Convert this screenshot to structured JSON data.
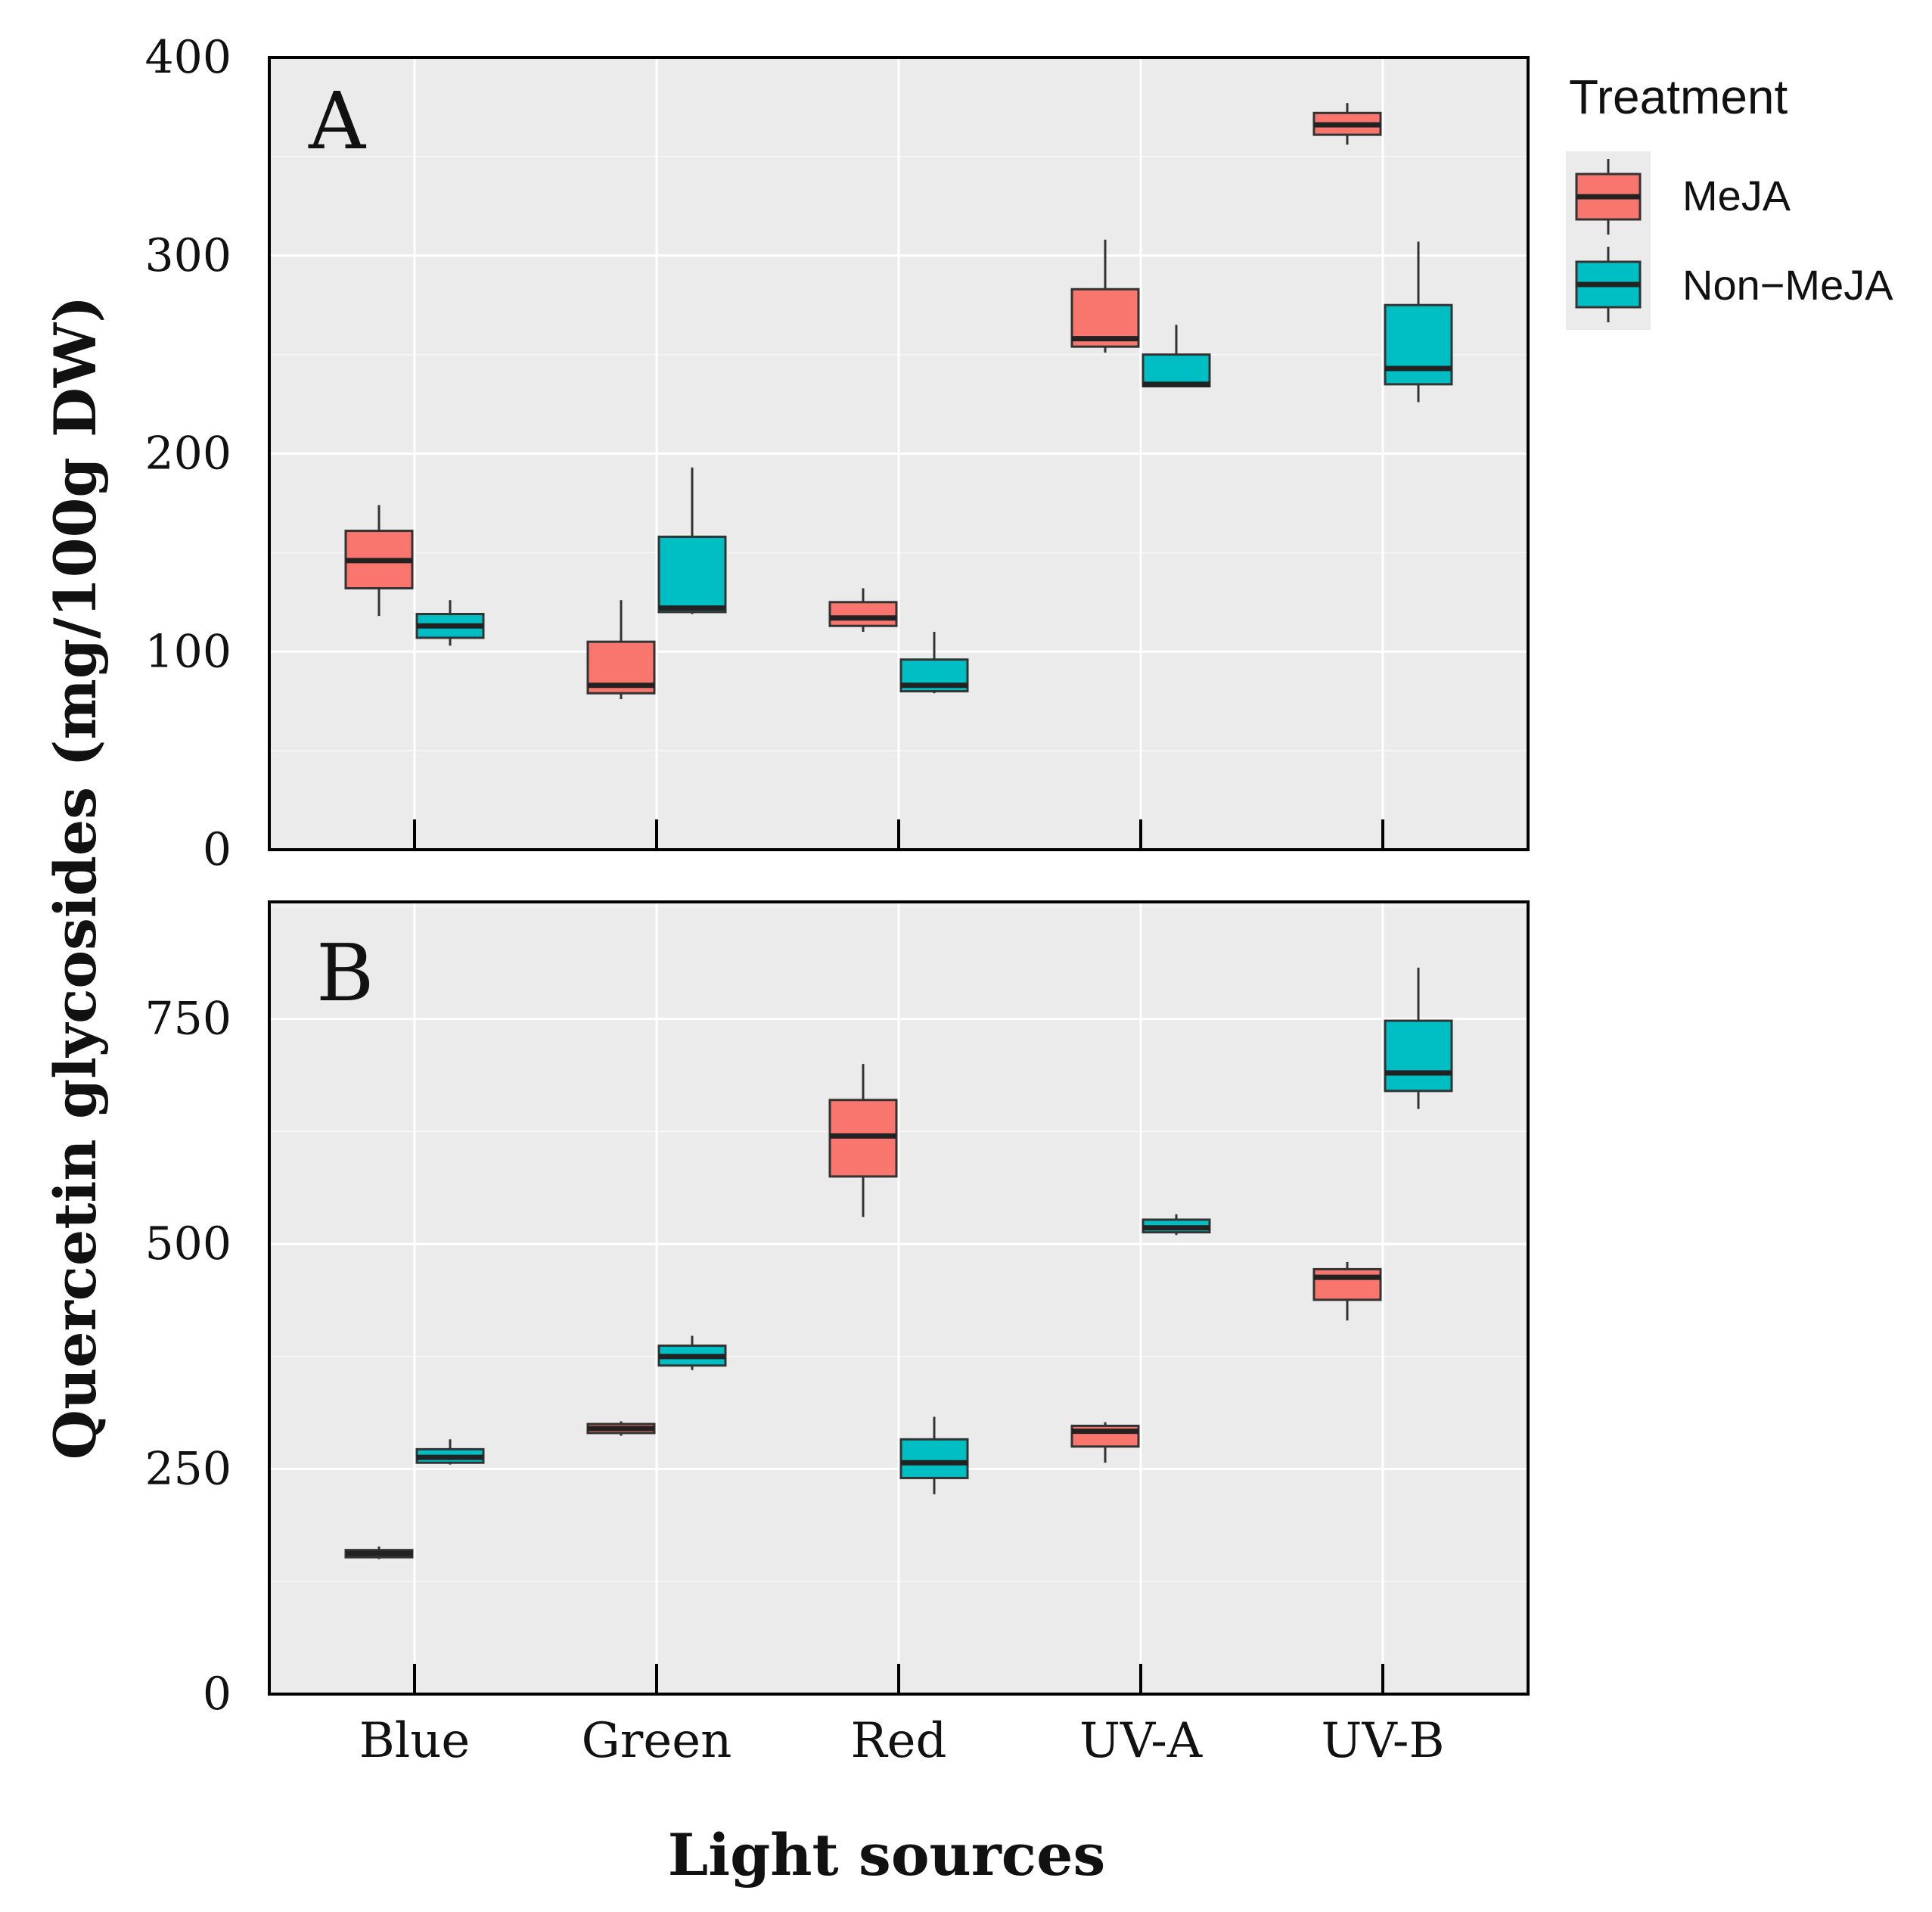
{
  "chart_data": {
    "type": "boxplot",
    "xlabel": "Light sources",
    "ylabel": "Quercetin glycosides (mg/100g DW)",
    "categories": [
      "Blue",
      "Green",
      "Red",
      "UV-A",
      "UV-B"
    ],
    "legend": {
      "title": "Treatment",
      "position": "right",
      "entries": [
        {
          "name": "MeJA",
          "color": "#f8766d"
        },
        {
          "name": "Non−MeJA",
          "color": "#00bfc4"
        }
      ]
    },
    "panels": [
      {
        "label": "A",
        "ylim": [
          0,
          400
        ],
        "yticks": [
          0,
          100,
          200,
          300,
          400
        ],
        "series": [
          {
            "name": "MeJA",
            "boxes": [
              {
                "min": 118,
                "q1": 132,
                "median": 146,
                "q3": 161,
                "max": 174
              },
              {
                "min": 76,
                "q1": 79,
                "median": 83,
                "q3": 105,
                "max": 126
              },
              {
                "min": 110,
                "q1": 113,
                "median": 117,
                "q3": 125,
                "max": 132
              },
              {
                "min": 251,
                "q1": 254,
                "median": 258,
                "q3": 283,
                "max": 308
              },
              {
                "min": 356,
                "q1": 361,
                "median": 366,
                "q3": 372,
                "max": 377
              }
            ]
          },
          {
            "name": "Non−MeJA",
            "boxes": [
              {
                "min": 103,
                "q1": 107,
                "median": 113,
                "q3": 119,
                "max": 126
              },
              {
                "min": 119,
                "q1": 120,
                "median": 122,
                "q3": 158,
                "max": 193
              },
              {
                "min": 79,
                "q1": 80,
                "median": 83,
                "q3": 96,
                "max": 110
              },
              {
                "min": 234,
                "q1": 234,
                "median": 235,
                "q3": 250,
                "max": 265
              },
              {
                "min": 226,
                "q1": 235,
                "median": 243,
                "q3": 275,
                "max": 307
              }
            ]
          }
        ]
      },
      {
        "label": "B",
        "ylim": [
          0,
          880
        ],
        "yticks": [
          0,
          250,
          500,
          750
        ],
        "series": [
          {
            "name": "MeJA",
            "boxes": [
              {
                "min": 150,
                "q1": 152,
                "median": 156,
                "q3": 160,
                "max": 164
              },
              {
                "min": 287,
                "q1": 290,
                "median": 295,
                "q3": 300,
                "max": 303
              },
              {
                "min": 530,
                "q1": 575,
                "median": 620,
                "q3": 660,
                "max": 700
              },
              {
                "min": 257,
                "q1": 275,
                "median": 292,
                "q3": 298,
                "max": 302
              },
              {
                "min": 415,
                "q1": 438,
                "median": 463,
                "q3": 472,
                "max": 480
              }
            ]
          },
          {
            "name": "Non−MeJA",
            "boxes": [
              {
                "min": 255,
                "q1": 257,
                "median": 263,
                "q3": 272,
                "max": 283
              },
              {
                "min": 360,
                "q1": 365,
                "median": 375,
                "q3": 387,
                "max": 398
              },
              {
                "min": 222,
                "q1": 240,
                "median": 257,
                "q3": 283,
                "max": 308
              },
              {
                "min": 510,
                "q1": 513,
                "median": 518,
                "q3": 527,
                "max": 533
              },
              {
                "min": 650,
                "q1": 670,
                "median": 690,
                "q3": 748,
                "max": 807
              }
            ]
          }
        ]
      }
    ]
  }
}
